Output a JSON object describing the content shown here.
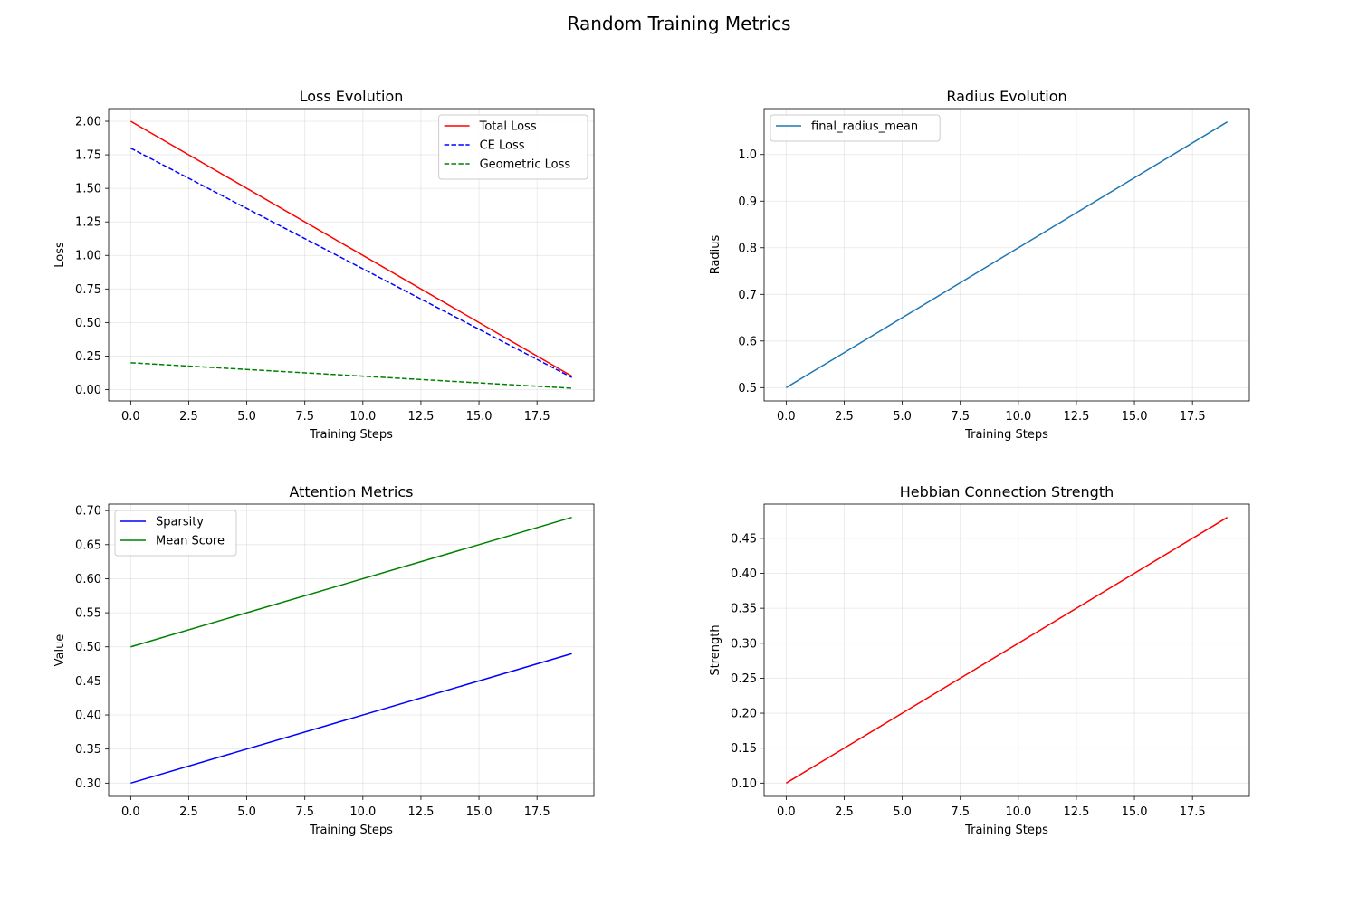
{
  "figure_title": "Random Training Metrics",
  "colors": {
    "total_loss": "#ff0000",
    "ce_loss": "#0000ff",
    "geometric_loss": "#008000",
    "final_radius_mean": "#1f77b4",
    "sparsity": "#0000ff",
    "mean_score": "#008000",
    "hebbian": "#ff0000"
  },
  "chart_data": [
    {
      "type": "line",
      "title": "Loss Evolution",
      "xlabel": "Training Steps",
      "ylabel": "Loss",
      "xlim": [
        -0.95,
        19.95
      ],
      "ylim": [
        -0.0845,
        2.0945
      ],
      "xticks": [
        0,
        2.5,
        5,
        7.5,
        10,
        12.5,
        15,
        17.5
      ],
      "xtick_labels": [
        "0.0",
        "2.5",
        "5.0",
        "7.5",
        "10.0",
        "12.5",
        "15.0",
        "17.5"
      ],
      "yticks": [
        0,
        0.25,
        0.5,
        0.75,
        1,
        1.25,
        1.5,
        1.75,
        2
      ],
      "ytick_labels": [
        "0.00",
        "0.25",
        "0.50",
        "0.75",
        "1.00",
        "1.25",
        "1.50",
        "1.75",
        "2.00"
      ],
      "grid": true,
      "legend": "upper-right",
      "series": [
        {
          "name": "Total Loss",
          "color": "#ff0000",
          "dash": "solid",
          "x": [
            0,
            19
          ],
          "values": [
            2.0,
            0.1
          ]
        },
        {
          "name": "CE Loss",
          "color": "#0000ff",
          "dash": "dashed",
          "x": [
            0,
            19
          ],
          "values": [
            1.8,
            0.09
          ]
        },
        {
          "name": "Geometric Loss",
          "color": "#008000",
          "dash": "dashed",
          "x": [
            0,
            19
          ],
          "values": [
            0.2,
            0.01
          ]
        }
      ]
    },
    {
      "type": "line",
      "title": "Radius Evolution",
      "xlabel": "Training Steps",
      "ylabel": "Radius",
      "xlim": [
        -0.95,
        19.95
      ],
      "ylim": [
        0.4715,
        1.0985
      ],
      "xticks": [
        0,
        2.5,
        5,
        7.5,
        10,
        12.5,
        15,
        17.5
      ],
      "xtick_labels": [
        "0.0",
        "2.5",
        "5.0",
        "7.5",
        "10.0",
        "12.5",
        "15.0",
        "17.5"
      ],
      "yticks": [
        0.5,
        0.6,
        0.7,
        0.8,
        0.9,
        1.0
      ],
      "ytick_labels": [
        "0.5",
        "0.6",
        "0.7",
        "0.8",
        "0.9",
        "1.0"
      ],
      "grid": true,
      "legend": "upper-left",
      "series": [
        {
          "name": "final_radius_mean",
          "color": "#1f77b4",
          "dash": "solid",
          "x": [
            0,
            19
          ],
          "values": [
            0.5,
            1.07
          ]
        }
      ]
    },
    {
      "type": "line",
      "title": "Attention Metrics",
      "xlabel": "Training Steps",
      "ylabel": "Value",
      "xlim": [
        -0.95,
        19.95
      ],
      "ylim": [
        0.2805,
        0.7095
      ],
      "xticks": [
        0,
        2.5,
        5,
        7.5,
        10,
        12.5,
        15,
        17.5
      ],
      "xtick_labels": [
        "0.0",
        "2.5",
        "5.0",
        "7.5",
        "10.0",
        "12.5",
        "15.0",
        "17.5"
      ],
      "yticks": [
        0.3,
        0.35,
        0.4,
        0.45,
        0.5,
        0.55,
        0.6,
        0.65,
        0.7
      ],
      "ytick_labels": [
        "0.30",
        "0.35",
        "0.40",
        "0.45",
        "0.50",
        "0.55",
        "0.60",
        "0.65",
        "0.70"
      ],
      "grid": true,
      "legend": "upper-left",
      "series": [
        {
          "name": "Sparsity",
          "color": "#0000ff",
          "dash": "solid",
          "x": [
            0,
            19
          ],
          "values": [
            0.3,
            0.49
          ]
        },
        {
          "name": "Mean Score",
          "color": "#008000",
          "dash": "solid",
          "x": [
            0,
            19
          ],
          "values": [
            0.5,
            0.69
          ]
        }
      ]
    },
    {
      "type": "line",
      "title": "Hebbian Connection Strength",
      "xlabel": "Training Steps",
      "ylabel": "Strength",
      "xlim": [
        -0.95,
        19.95
      ],
      "ylim": [
        0.081,
        0.499
      ],
      "xticks": [
        0,
        2.5,
        5,
        7.5,
        10,
        12.5,
        15,
        17.5
      ],
      "xtick_labels": [
        "0.0",
        "2.5",
        "5.0",
        "7.5",
        "10.0",
        "12.5",
        "15.0",
        "17.5"
      ],
      "yticks": [
        0.1,
        0.15,
        0.2,
        0.25,
        0.3,
        0.35,
        0.4,
        0.45
      ],
      "ytick_labels": [
        "0.10",
        "0.15",
        "0.20",
        "0.25",
        "0.30",
        "0.35",
        "0.40",
        "0.45"
      ],
      "grid": true,
      "legend": "none",
      "series": [
        {
          "name": "",
          "color": "#ff0000",
          "dash": "solid",
          "x": [
            0,
            19
          ],
          "values": [
            0.1,
            0.48
          ]
        }
      ]
    }
  ]
}
